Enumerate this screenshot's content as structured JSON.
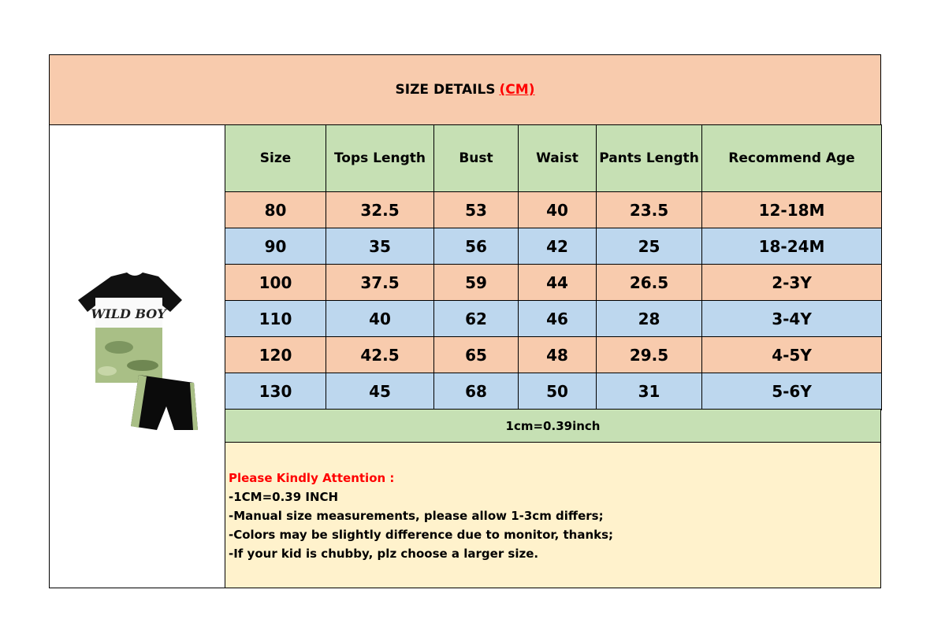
{
  "title": {
    "text": "SIZE DETAILS",
    "unit": "(CM)"
  },
  "colors": {
    "title_bg": "#F8CBAD",
    "header_bg": "#C6E0B4",
    "row_odd_bg": "#F8CBAD",
    "row_even_bg": "#BDD7EE",
    "note_bg": "#FFF2CC",
    "unit_text": "#FF0000"
  },
  "product_image": {
    "print_text": "WILD BOY",
    "description_icon": "kids-tshirt-and-shorts-set"
  },
  "table": {
    "headers": [
      "Size",
      "Tops Length",
      "Bust",
      "Waist",
      "Pants Length",
      "Recommend Age"
    ],
    "rows": [
      [
        "80",
        "32.5",
        "53",
        "40",
        "23.5",
        "12-18M"
      ],
      [
        "90",
        "35",
        "56",
        "42",
        "25",
        "18-24M"
      ],
      [
        "100",
        "37.5",
        "59",
        "44",
        "26.5",
        "2-3Y"
      ],
      [
        "110",
        "40",
        "62",
        "46",
        "28",
        "3-4Y"
      ],
      [
        "120",
        "42.5",
        "65",
        "48",
        "29.5",
        "4-5Y"
      ],
      [
        "130",
        "45",
        "68",
        "50",
        "31",
        "5-6Y"
      ]
    ],
    "conversion": "1cm=0.39inch"
  },
  "attention": {
    "heading": "Please Kindly Attention :",
    "lines": [
      "-1CM=0.39 INCH",
      "-Manual size measurements, please allow 1-3cm differs;",
      "-Colors may be slightly difference due to monitor, thanks;",
      "-If your kid is chubby, plz choose a larger size."
    ]
  }
}
